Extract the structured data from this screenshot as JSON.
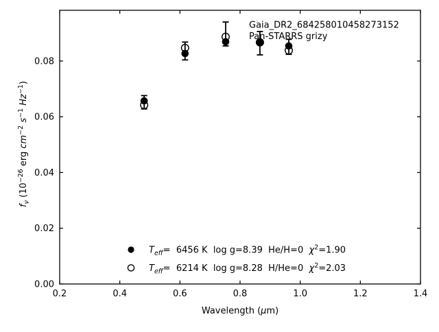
{
  "chart_data": {
    "type": "scatter",
    "title": "Gaia_DR2_684258010458273152",
    "subtitle": "Pan-STARRS grizy",
    "xlabel_text": "Wavelength (μm)",
    "ylabel_text": "f_ν (10−26 erg cm−2 s−1 Hz−1)",
    "xlabel_segments": [
      {
        "t": "Wavelength (",
        "s": ""
      },
      {
        "t": "μ",
        "s": "i"
      },
      {
        "t": "m)",
        "s": ""
      }
    ],
    "ylabel_segments": [
      {
        "t": "f",
        "s": "i"
      },
      {
        "t": "ν",
        "s": "isub"
      },
      {
        "t": " (10",
        "s": ""
      },
      {
        "t": "−26",
        "s": "sup"
      },
      {
        "t": " erg ",
        "s": ""
      },
      {
        "t": "cm",
        "s": "i"
      },
      {
        "t": "−2",
        "s": "sup"
      },
      {
        "t": " ",
        "s": ""
      },
      {
        "t": "s",
        "s": "i"
      },
      {
        "t": "−1",
        "s": "sup"
      },
      {
        "t": " ",
        "s": ""
      },
      {
        "t": "Hz",
        "s": "i"
      },
      {
        "t": "−1",
        "s": "sup"
      },
      {
        "t": ")",
        "s": ""
      }
    ],
    "xlim": [
      0.2,
      1.4
    ],
    "ylim": [
      0,
      0.0982
    ],
    "grid": false,
    "x_ticks": [
      0.2,
      0.4,
      0.6,
      0.8,
      1.0,
      1.2,
      1.4
    ],
    "x_tick_labels": [
      "0.2",
      "0.4",
      "0.6",
      "0.8",
      "1.0",
      "1.2",
      "1.4"
    ],
    "y_ticks": [
      0,
      0.02,
      0.04,
      0.06,
      0.08
    ],
    "y_tick_labels": [
      "0.00",
      "0.02",
      "0.04",
      "0.06",
      "0.08"
    ],
    "bands": [
      "g",
      "r",
      "i",
      "z",
      "y"
    ],
    "x": [
      0.481,
      0.617,
      0.752,
      0.866,
      0.962
    ],
    "observed": {
      "values": [
        0.0652,
        0.0836,
        0.0897,
        0.0864,
        0.0851
      ],
      "yerr": [
        0.0024,
        0.0032,
        0.0043,
        0.0042,
        0.0027
      ]
    },
    "series": [
      {
        "name": "He/H=0 model (Teff 6456 K)",
        "marker": "filled-circle",
        "values": [
          0.0657,
          0.0827,
          0.0869,
          0.0867,
          0.0854
        ]
      },
      {
        "name": "H/He=0 model (Teff 6214 K)",
        "marker": "open-circle",
        "values": [
          0.0642,
          0.0847,
          0.0887,
          0.0867,
          0.0838
        ]
      }
    ],
    "legend": {
      "position": "lower-left-inside, frameless",
      "rows": [
        {
          "marker": "filled-circle",
          "text": "Teff=  6456 K  log g=8.39  He/H=0  χ2=1.90",
          "segments": [
            {
              "t": "T",
              "s": "i"
            },
            {
              "t": "eff",
              "s": "isub"
            },
            {
              "t": "=  6456 K  log g=8.39  He/H=0  ",
              "s": ""
            },
            {
              "t": "χ",
              "s": "i"
            },
            {
              "t": "2",
              "s": "sup"
            },
            {
              "t": "=1.90",
              "s": ""
            }
          ]
        },
        {
          "marker": "open-circle",
          "text": "Teff=  6214 K  log g=8.28  H/He=0  χ2=2.03",
          "segments": [
            {
              "t": "T",
              "s": "i"
            },
            {
              "t": "eff",
              "s": "isub"
            },
            {
              "t": "=  6214 K  log g=8.28  H/He=0  ",
              "s": ""
            },
            {
              "t": "χ",
              "s": "i"
            },
            {
              "t": "2",
              "s": "sup"
            },
            {
              "t": "=2.03",
              "s": ""
            }
          ]
        }
      ]
    },
    "colors": {
      "foreground": "#000000",
      "background": "#ffffff"
    }
  }
}
